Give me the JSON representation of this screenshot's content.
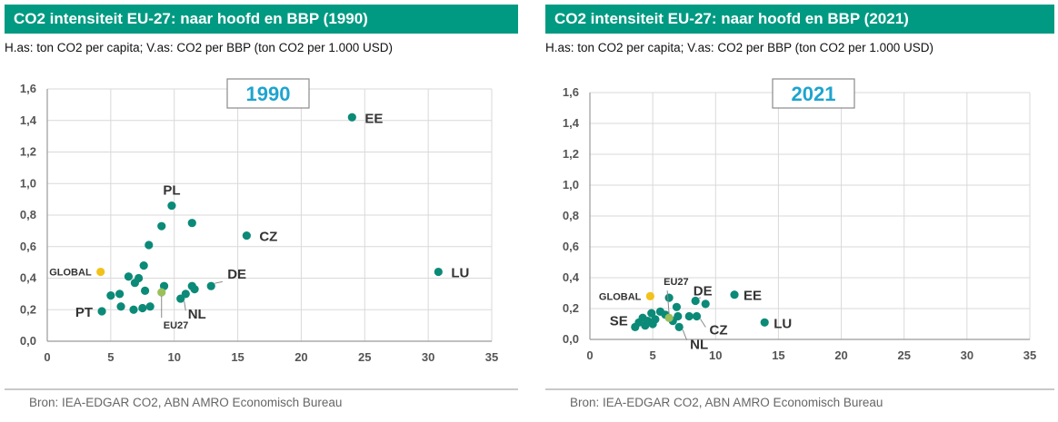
{
  "colors": {
    "header_bg": "#009a82",
    "point": "#0b8a78",
    "global": "#f2c21b",
    "eu27": "#9bbf5a",
    "year": "#1ea4cf"
  },
  "source": "Bron: IEA-EDGAR CO2, ABN AMRO Economisch Bureau",
  "chart_data": [
    {
      "type": "scatter",
      "title": "CO2 intensiteit EU-27: naar hoofd en BBP (1990)",
      "subtitle": "H.as: ton CO2 per capita; V.as: CO2 per BBP (ton CO2 per 1.000 USD)",
      "year_label": "1990",
      "xlim": [
        0,
        35
      ],
      "ylim": [
        0,
        1.6
      ],
      "x_ticks": [
        "0",
        "5",
        "10",
        "15",
        "20",
        "25",
        "30",
        "35"
      ],
      "y_ticks": [
        "0,0",
        "0,2",
        "0,4",
        "0,6",
        "0,8",
        "1,0",
        "1,2",
        "1,4",
        "1,6"
      ],
      "grid": true,
      "points": [
        {
          "x": 24.0,
          "y": 1.42,
          "label": "EE"
        },
        {
          "x": 9.8,
          "y": 0.86,
          "label": "PL"
        },
        {
          "x": 15.7,
          "y": 0.67,
          "label": "CZ"
        },
        {
          "x": 30.8,
          "y": 0.44,
          "label": "LU"
        },
        {
          "x": 12.9,
          "y": 0.35,
          "label": "DE"
        },
        {
          "x": 10.5,
          "y": 0.27,
          "label": "NL"
        },
        {
          "x": 4.3,
          "y": 0.19,
          "label": "PT"
        },
        {
          "x": 11.4,
          "y": 0.75
        },
        {
          "x": 9.0,
          "y": 0.73
        },
        {
          "x": 8.0,
          "y": 0.61
        },
        {
          "x": 7.6,
          "y": 0.48
        },
        {
          "x": 6.4,
          "y": 0.41
        },
        {
          "x": 7.2,
          "y": 0.4
        },
        {
          "x": 6.9,
          "y": 0.37
        },
        {
          "x": 5.0,
          "y": 0.29
        },
        {
          "x": 5.7,
          "y": 0.3
        },
        {
          "x": 7.7,
          "y": 0.32
        },
        {
          "x": 9.2,
          "y": 0.35
        },
        {
          "x": 10.9,
          "y": 0.3
        },
        {
          "x": 11.4,
          "y": 0.35
        },
        {
          "x": 11.6,
          "y": 0.33
        },
        {
          "x": 5.8,
          "y": 0.22
        },
        {
          "x": 6.8,
          "y": 0.2
        },
        {
          "x": 7.5,
          "y": 0.21
        },
        {
          "x": 8.1,
          "y": 0.22
        }
      ],
      "global": {
        "x": 4.2,
        "y": 0.44,
        "label": "GLOBAL"
      },
      "eu27": {
        "x": 9.0,
        "y": 0.31,
        "label": "EU27"
      }
    },
    {
      "type": "scatter",
      "title": "CO2 intensiteit EU-27: naar hoofd en BBP (2021)",
      "subtitle": "H.as: ton CO2 per capita; V.as: CO2 per BBP (ton CO2 per 1.000 USD)",
      "year_label": "2021",
      "xlim": [
        0,
        35
      ],
      "ylim": [
        0,
        1.6
      ],
      "x_ticks": [
        "0",
        "5",
        "10",
        "15",
        "20",
        "25",
        "30",
        "35"
      ],
      "y_ticks": [
        "0,0",
        "0,2",
        "0,4",
        "0,6",
        "0,8",
        "1,0",
        "1,2",
        "1,4",
        "1,6"
      ],
      "grid": true,
      "points": [
        {
          "x": 11.5,
          "y": 0.29,
          "label": "EE"
        },
        {
          "x": 8.4,
          "y": 0.25,
          "label": "DE"
        },
        {
          "x": 8.5,
          "y": 0.15,
          "label": "CZ"
        },
        {
          "x": 13.9,
          "y": 0.11,
          "label": "LU"
        },
        {
          "x": 7.1,
          "y": 0.08,
          "label": "NL"
        },
        {
          "x": 3.6,
          "y": 0.08,
          "label": "SE"
        },
        {
          "x": 6.3,
          "y": 0.27
        },
        {
          "x": 9.2,
          "y": 0.23
        },
        {
          "x": 6.9,
          "y": 0.21
        },
        {
          "x": 5.6,
          "y": 0.18
        },
        {
          "x": 4.9,
          "y": 0.17
        },
        {
          "x": 6.0,
          "y": 0.16
        },
        {
          "x": 7.0,
          "y": 0.15
        },
        {
          "x": 7.9,
          "y": 0.15
        },
        {
          "x": 4.2,
          "y": 0.14
        },
        {
          "x": 5.2,
          "y": 0.13
        },
        {
          "x": 6.6,
          "y": 0.12
        },
        {
          "x": 3.9,
          "y": 0.11
        },
        {
          "x": 4.6,
          "y": 0.12
        },
        {
          "x": 5.0,
          "y": 0.1
        },
        {
          "x": 4.4,
          "y": 0.09
        }
      ],
      "global": {
        "x": 4.8,
        "y": 0.28,
        "label": "GLOBAL"
      },
      "eu27": {
        "x": 6.3,
        "y": 0.14,
        "label": "EU27"
      }
    }
  ]
}
